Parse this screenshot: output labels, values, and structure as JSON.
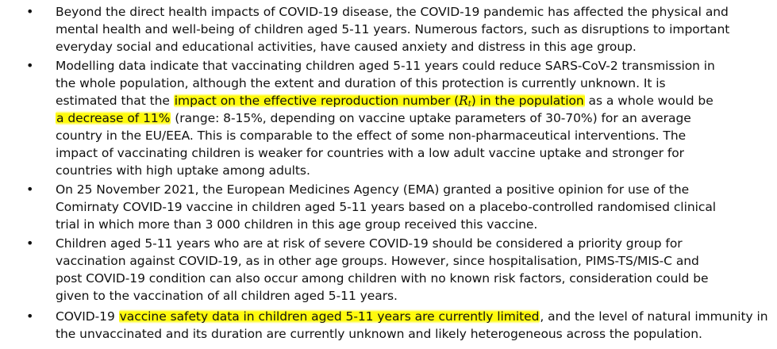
{
  "bullet_symbol": "•",
  "colors": {
    "highlight": "#fff700",
    "text": "#111111",
    "background": "#ffffff"
  },
  "bullets": [
    {
      "lines": [
        "Beyond the direct health impacts of COVID-19 disease, the COVID-19 pandemic has affected the physical and",
        "mental health and well-being of children aged 5-11 years. Numerous factors, such as disruptions to important",
        "everyday social and educational activities, have caused anxiety and distress in this age group."
      ]
    },
    {
      "lines": [
        "Modelling data indicate that vaccinating children aged 5-11 years could reduce SARS-CoV-2 transmission in",
        "the whole population, although the extent and duration of this protection is currently unknown. It is"
      ],
      "line3_before": "estimated that the ",
      "line3_highlight_a": "impact on the effective reproduction number (",
      "rt_symbol": "R",
      "rt_sub": "t",
      "line3_highlight_b": ") in the population",
      "line3_after": " as a whole would be",
      "line4_highlight": "a decrease of 11%",
      "line4_after": " (range: 8-15%, depending on vaccine uptake parameters of 30-70%) for an average",
      "lines_tail": [
        "country in the EU/EEA. This is comparable to the effect of some non-pharmaceutical interventions. The",
        "impact of vaccinating children is weaker for countries with a low adult vaccine uptake and stronger for",
        "countries with high uptake among adults."
      ]
    },
    {
      "lines": [
        "On 25 November 2021, the European Medicines Agency (EMA) granted a positive opinion for use of the",
        "Comirnaty COVID-19 vaccine in children aged 5-11 years based on a placebo-controlled randomised clinical",
        "trial in which more than 3 000 children in this age group received this vaccine."
      ]
    },
    {
      "lines": [
        "Children aged 5-11 years who are at risk of severe COVID-19 should be considered a priority group for",
        "vaccination against COVID-19, as in other age groups. However, since hospitalisation, PIMS-TS/MIS-C and",
        "post COVID-19 condition can also occur among children with no known risk factors, consideration could be",
        "given to the vaccination of all children aged 5-11 years."
      ]
    },
    {
      "line1_before": "COVID-19 ",
      "line1_highlight": "vaccine safety data in children aged 5-11 years are currently limited",
      "line1_after": ", and the level of natural immunity in",
      "lines": [
        "the unvaccinated and its duration are currently unknown and likely heterogeneous across the population."
      ]
    }
  ]
}
